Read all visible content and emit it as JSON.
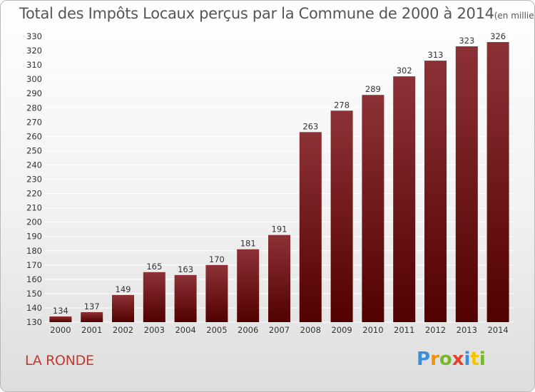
{
  "header": {
    "title": "Total des Impôts Locaux perçus par la Commune de 2000 à 2014",
    "unit": "(en milliers d'€)"
  },
  "footer": {
    "commune": "LA RONDE",
    "logo_letters": [
      "P",
      "r",
      "o",
      "x",
      "i",
      "t",
      "i"
    ],
    "logo_colors": [
      "#3a8fd8",
      "#f39200",
      "#77b82a",
      "#e8412c",
      "#3a8fd8",
      "#f5c400",
      "#77b82a"
    ]
  },
  "colors": {
    "bar_top": "#8c3236",
    "bar_bottom": "#520000",
    "grid": "#ffffff",
    "axis_text": "#333333",
    "label_text": "#333333"
  },
  "chart_data": {
    "type": "bar",
    "title": "Total des Impôts Locaux perçus par la Commune de 2000 à 2014",
    "xlabel": "",
    "ylabel": "",
    "categories": [
      "2000",
      "2001",
      "2002",
      "2003",
      "2004",
      "2005",
      "2006",
      "2007",
      "2008",
      "2009",
      "2010",
      "2011",
      "2012",
      "2013",
      "2014"
    ],
    "values": [
      134,
      137,
      149,
      165,
      163,
      170,
      181,
      191,
      263,
      278,
      289,
      302,
      313,
      323,
      326
    ],
    "ylim": [
      130,
      330
    ],
    "ytick_step": 10,
    "grid": true
  }
}
